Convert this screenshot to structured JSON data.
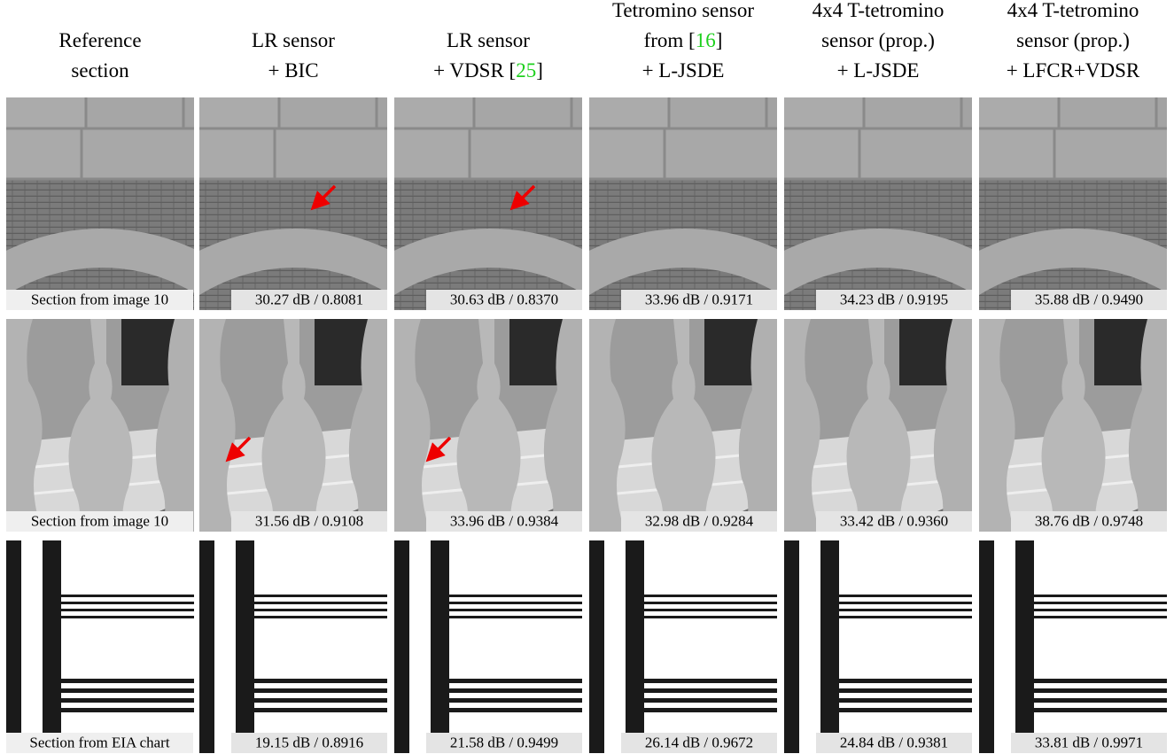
{
  "link_color": "#1ed01e",
  "columns": [
    {
      "header": [
        [
          {
            "text": "Reference"
          }
        ],
        [
          {
            "text": "section"
          }
        ]
      ]
    },
    {
      "header": [
        [
          {
            "text": "LR sensor"
          }
        ],
        [
          {
            "text": "+ BIC"
          }
        ]
      ]
    },
    {
      "header": [
        [
          {
            "text": "LR sensor"
          }
        ],
        [
          {
            "text": "+ VDSR ["
          },
          {
            "text": "25",
            "link": true
          },
          {
            "text": "]"
          }
        ]
      ]
    },
    {
      "header": [
        [
          {
            "text": "Tetromino sensor"
          }
        ],
        [
          {
            "text": "from ["
          },
          {
            "text": "16",
            "link": true
          },
          {
            "text": "]"
          }
        ],
        [
          {
            "text": "+ L-JSDE"
          }
        ]
      ]
    },
    {
      "header": [
        [
          {
            "text": "4x4 T-tetromino"
          }
        ],
        [
          {
            "text": "sensor (prop.)"
          }
        ],
        [
          {
            "text": "+ L-JSDE"
          }
        ]
      ]
    },
    {
      "header": [
        [
          {
            "text": "4x4 T-tetromino"
          }
        ],
        [
          {
            "text": "sensor (prop.)"
          }
        ],
        [
          {
            "text": "+ LFCR+VDSR"
          }
        ]
      ]
    }
  ],
  "rows": [
    {
      "label": "Section from image 10",
      "metrics": [
        "30.27 dB / 0.8081",
        "30.63 dB / 0.8370",
        "33.96 dB / 0.9171",
        "34.23 dB / 0.9195",
        "35.88 dB / 0.9490"
      ]
    },
    {
      "label": "Section from image 10",
      "metrics": [
        "31.56 dB / 0.9108",
        "33.96 dB / 0.9384",
        "32.98 dB / 0.9284",
        "33.42 dB / 0.9360",
        "38.76 dB / 0.9748"
      ]
    },
    {
      "label": "Section from EIA chart",
      "metrics": [
        "19.15 dB / 0.8916",
        "21.58 dB / 0.9499",
        "26.14 dB / 0.9672",
        "24.84 dB / 0.9381",
        "33.81 dB / 0.9971"
      ]
    }
  ]
}
